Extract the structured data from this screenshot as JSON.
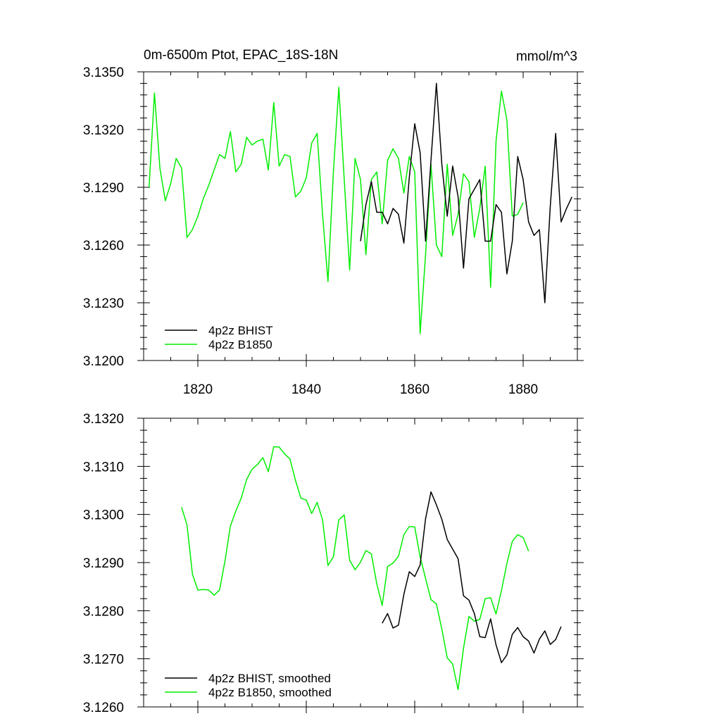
{
  "chart_data": [
    {
      "type": "line",
      "title": "0m-6500m Ptot, EPAC_18S-18N",
      "units": "mmol/m^3",
      "xlim": [
        1810,
        1890
      ],
      "ylim": [
        3.12,
        3.135
      ],
      "xticks": [
        1820,
        1840,
        1860,
        1880
      ],
      "yticks": [
        3.12,
        3.123,
        3.126,
        3.129,
        3.132,
        3.135
      ],
      "yticklabels": [
        "3.1200",
        "3.1230",
        "3.1260",
        "3.1290",
        "3.1320",
        "3.1350"
      ],
      "legend_position": "bottom-left",
      "series": [
        {
          "name": "4p2z BHIST",
          "color": "#000000",
          "x_start": 1850,
          "values": [
            3.1262,
            3.1281,
            3.1293,
            3.1277,
            3.1277,
            3.1271,
            3.1279,
            3.1276,
            3.1261,
            3.1295,
            3.1323,
            3.1308,
            3.1262,
            3.1304,
            3.1344,
            3.1302,
            3.1275,
            3.1301,
            3.1285,
            3.1248,
            3.1284,
            3.1289,
            3.1294,
            3.1262,
            3.1262,
            3.1281,
            3.1277,
            3.1245,
            3.1262,
            3.1306,
            3.1294,
            3.1272,
            3.1265,
            3.1268,
            3.123,
            3.128,
            3.1318,
            3.1272,
            3.1279,
            3.1285
          ]
        },
        {
          "name": "4p2z B1850",
          "color": "#00ee00",
          "x_start": 1811,
          "values": [
            3.129,
            3.1339,
            3.13,
            3.1283,
            3.1292,
            3.1305,
            3.13,
            3.1264,
            3.1268,
            3.1275,
            3.1284,
            3.1291,
            3.1299,
            3.1307,
            3.1305,
            3.1319,
            3.1298,
            3.1302,
            3.1316,
            3.1312,
            3.1314,
            3.1315,
            3.1299,
            3.1334,
            3.1301,
            3.1307,
            3.1306,
            3.1285,
            3.1288,
            3.1295,
            3.1313,
            3.1318,
            3.1276,
            3.1241,
            3.1298,
            3.1342,
            3.1294,
            3.1247,
            3.1305,
            3.1294,
            3.1255,
            3.1294,
            3.1298,
            3.1271,
            3.1304,
            3.131,
            3.1305,
            3.1287,
            3.1306,
            3.1298,
            3.1214,
            3.1255,
            3.1302,
            3.126,
            3.1254,
            3.1302,
            3.1265,
            3.1276,
            3.1297,
            3.1293,
            3.1264,
            3.1279,
            3.1301,
            3.1238,
            3.1314,
            3.134,
            3.1325,
            3.1275,
            3.1276,
            3.1282
          ]
        }
      ]
    },
    {
      "type": "line",
      "title": "",
      "xlim": [
        1810,
        1890
      ],
      "ylim": [
        3.126,
        3.132
      ],
      "xticks": [
        1820,
        1840,
        1860,
        1880
      ],
      "yticks": [
        3.126,
        3.127,
        3.128,
        3.129,
        3.13,
        3.131,
        3.132
      ],
      "yticklabels": [
        "3.1260",
        "3.1270",
        "3.1280",
        "3.1290",
        "3.1300",
        "3.1310",
        "3.1320"
      ],
      "legend_position": "bottom-left",
      "series": [
        {
          "name": "4p2z BHIST, smoothed",
          "color": "#000000",
          "x_start": 1854,
          "values": [
            3.12774,
            3.12794,
            3.12764,
            3.1277,
            3.12834,
            3.12881,
            3.12871,
            3.12895,
            3.12991,
            3.13047,
            3.1302,
            3.1299,
            3.12948,
            3.12928,
            3.12908,
            3.12831,
            3.12822,
            3.12794,
            3.12746,
            3.12744,
            3.12783,
            3.12729,
            3.12692,
            3.12708,
            3.12751,
            3.12765,
            3.12746,
            3.12737,
            3.12712,
            3.12741,
            3.12758,
            3.1273,
            3.1274,
            3.12767
          ]
        },
        {
          "name": "4p2z B1850, smoothed",
          "color": "#00ee00",
          "x_start": 1817,
          "values": [
            3.13015,
            3.12978,
            3.12876,
            3.12843,
            3.12844,
            3.12843,
            3.12832,
            3.12843,
            3.12903,
            3.12976,
            3.13007,
            3.13034,
            3.13073,
            3.13094,
            3.13104,
            3.13118,
            3.13089,
            3.13141,
            3.1314,
            3.13126,
            3.13115,
            3.13071,
            3.13034,
            3.1303,
            3.13002,
            3.13025,
            3.12989,
            3.12894,
            3.12912,
            3.12989,
            3.12999,
            3.12905,
            3.12885,
            3.12901,
            3.12925,
            3.12918,
            3.12856,
            3.12811,
            3.12892,
            3.12899,
            3.12913,
            3.12958,
            3.12975,
            3.12974,
            3.12912,
            3.12867,
            3.12823,
            3.12814,
            3.12762,
            3.12702,
            3.12689,
            3.12636,
            3.12722,
            3.12788,
            3.12778,
            3.12782,
            3.12825,
            3.12827,
            3.12793,
            3.12842,
            3.12898,
            3.12944,
            3.12958,
            3.12952,
            3.12924
          ]
        }
      ]
    }
  ]
}
